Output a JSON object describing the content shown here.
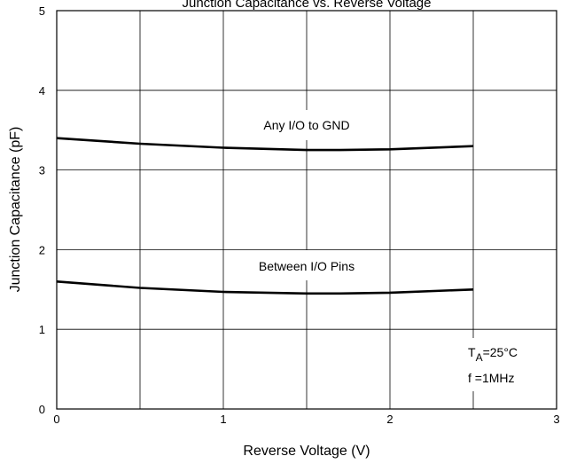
{
  "chart_data": {
    "type": "line",
    "title": "Junction Capacitance vs. Reverse Voltage",
    "xlabel": "Reverse Voltage (V)",
    "ylabel": "Junction Capacitance (pF)",
    "xlim": [
      0,
      3
    ],
    "ylim": [
      0,
      5
    ],
    "xticks": [
      0,
      1,
      2,
      3
    ],
    "yticks": [
      0,
      1,
      2,
      3,
      4,
      5
    ],
    "grid": true,
    "series": [
      {
        "name": "Any I/O to GND",
        "x": [
          0,
          0.5,
          1,
          1.5,
          1.7,
          2,
          2.5
        ],
        "y": [
          3.4,
          3.33,
          3.28,
          3.25,
          3.25,
          3.26,
          3.3
        ]
      },
      {
        "name": "Between I/O Pins",
        "x": [
          0,
          0.5,
          1,
          1.5,
          1.7,
          2,
          2.5
        ],
        "y": [
          1.6,
          1.52,
          1.47,
          1.45,
          1.45,
          1.46,
          1.5
        ]
      }
    ],
    "conditions": {
      "ta_symbol": "T",
      "ta_subscript": "A",
      "ta_value": "=25°C",
      "freq": "f =1MHz"
    }
  }
}
